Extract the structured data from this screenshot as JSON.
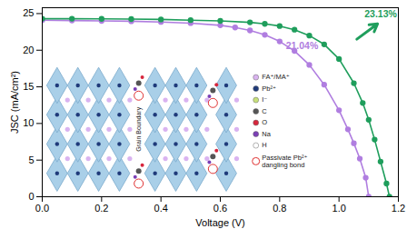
{
  "chart_data": {
    "type": "line",
    "x_label": "Voltage (V)",
    "y_label": "JSC (mA/cm²)",
    "xlim": [
      0,
      1.2
    ],
    "ylim": [
      0,
      25.8
    ],
    "xticks": [
      {
        "value": 0,
        "label": "0.0"
      },
      0.2,
      0.4,
      0.6,
      0.8,
      {
        "value": 1,
        "label": "1.0"
      },
      1.2
    ],
    "yticks": [
      0,
      5,
      10,
      15,
      20,
      25
    ],
    "grid": false,
    "series": [
      {
        "name": "21.04%",
        "color": "#b07ee0",
        "marker": "circle",
        "x": [
          0,
          0.1,
          0.2,
          0.3,
          0.4,
          0.5,
          0.6,
          0.65,
          0.7,
          0.75,
          0.8,
          0.85,
          0.9,
          0.95,
          1.0,
          1.03,
          1.05,
          1.07,
          1.09,
          1.1
        ],
        "values": [
          24.1,
          24.05,
          24.0,
          23.95,
          23.85,
          23.7,
          23.4,
          23.1,
          22.7,
          22.1,
          21.2,
          19.9,
          18.0,
          15.3,
          11.8,
          9.2,
          7.3,
          5.2,
          2.6,
          0
        ]
      },
      {
        "name": "23.13%",
        "color": "#1f9e5c",
        "marker": "circle",
        "x": [
          0,
          0.1,
          0.2,
          0.3,
          0.4,
          0.5,
          0.6,
          0.7,
          0.75,
          0.8,
          0.85,
          0.9,
          0.95,
          1.0,
          1.05,
          1.08,
          1.1,
          1.12,
          1.14,
          1.16,
          1.17
        ],
        "values": [
          24.3,
          24.3,
          24.28,
          24.25,
          24.2,
          24.1,
          24.0,
          23.8,
          23.6,
          23.3,
          22.8,
          22.0,
          20.8,
          18.8,
          15.5,
          12.8,
          10.5,
          7.8,
          4.8,
          1.8,
          0
        ]
      }
    ]
  },
  "inset": {
    "legend": [
      {
        "label": "FA⁺/MA⁺",
        "color": "#d9b3f0"
      },
      {
        "label": "Pb²⁺",
        "color": "#1f3a7a"
      },
      {
        "label": "I⁻",
        "color": "#c7e07a"
      },
      {
        "label": "C",
        "color": "#555555"
      },
      {
        "label": "O",
        "color": "#d7263d"
      },
      {
        "label": "Na",
        "color": "#7b3fb5"
      },
      {
        "label": "H",
        "color": "#ffffff"
      }
    ],
    "grain_boundary": "Grain Boundary",
    "passivation": {
      "label": "Passivate Pb²⁺ dangling bond",
      "color": "#e03030"
    }
  }
}
